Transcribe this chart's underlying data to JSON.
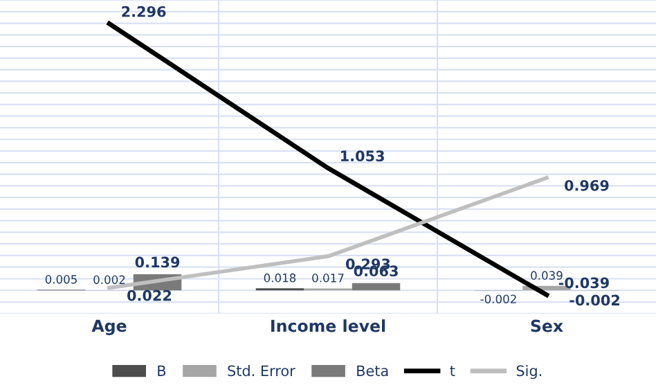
{
  "chart_data": {
    "type": "bar",
    "categories": [
      "Age",
      "Income level",
      "Sex"
    ],
    "series": [
      {
        "name": "B",
        "color": "#4d4d4d",
        "values": [
          0.005,
          0.018,
          -0.002
        ]
      },
      {
        "name": "Std. Error",
        "color": "#a6a6a6",
        "values": [
          0.002,
          0.017,
          0.039
        ]
      },
      {
        "name": "Beta",
        "color": "#7a7a7a",
        "values": [
          0.139,
          0.063,
          -0.002
        ]
      },
      {
        "name": "t",
        "type": "line",
        "color": "#000000",
        "values": [
          2.296,
          1.053,
          -0.039
        ]
      },
      {
        "name": "Sig.",
        "type": "line",
        "color": "#bfbfbf",
        "values": [
          0.022,
          0.293,
          0.969
        ]
      }
    ],
    "ylim": [
      -0.2,
      2.5
    ],
    "yticks": [
      {
        "value": -0.2,
        "label": null
      },
      {
        "value": -0.1,
        "label": null
      },
      {
        "value": 0,
        "label": null
      },
      {
        "value": 0.1,
        "label": null
      },
      {
        "value": 0.2,
        "label": null
      },
      {
        "value": 0.3,
        "label": null
      },
      {
        "value": 0.4,
        "label": null
      },
      {
        "value": 0.5,
        "label": null
      },
      {
        "value": 0.6,
        "label": null
      },
      {
        "value": 0.7,
        "label": null
      },
      {
        "value": 0.8,
        "label": null
      },
      {
        "value": 0.9,
        "label": null
      },
      {
        "value": 1.0,
        "label": null
      },
      {
        "value": 1.1,
        "label": null
      },
      {
        "value": 1.2,
        "label": null
      },
      {
        "value": 1.3,
        "label": null
      },
      {
        "value": 1.4,
        "label": null
      },
      {
        "value": 1.5,
        "label": null
      },
      {
        "value": 1.6,
        "label": null
      },
      {
        "value": 1.7,
        "label": null
      },
      {
        "value": 1.8,
        "label": null
      },
      {
        "value": 1.9,
        "label": null
      },
      {
        "value": 2.0,
        "label": null
      },
      {
        "value": 2.1,
        "label": null
      },
      {
        "value": 2.2,
        "label": null
      },
      {
        "value": 2.3,
        "label": null
      },
      {
        "value": 2.4,
        "label": null
      },
      {
        "value": 2.5,
        "label": null
      }
    ],
    "tick_labels": "x",
    "grid": true,
    "data_labels": true,
    "legend": "bottom",
    "line_style": "solid",
    "marker": "none"
  }
}
